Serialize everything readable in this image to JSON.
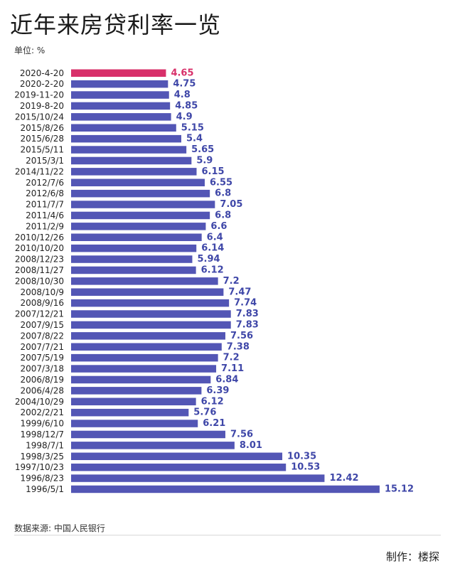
{
  "header": {
    "title": "近年来房贷利率一览",
    "unit": "单位: %"
  },
  "footer": {
    "source": "数据来源: 中国人民银行",
    "credit": "制作：楼探"
  },
  "colors": {
    "bar": "#5356b5",
    "highlight": "#d8306a",
    "label": "#3f47a8"
  },
  "chart_data": {
    "type": "bar",
    "orientation": "horizontal",
    "title": "近年来房贷利率一览",
    "unit": "%",
    "highlight_index": 0,
    "categories": [
      "2020-4-20",
      "2020-2-20",
      "2019-11-20",
      "2019-8-20",
      "2015/10/24",
      "2015/8/26",
      "2015/6/28",
      "2015/5/11",
      "2015/3/1",
      "2014/11/22",
      "2012/7/6",
      "2012/6/8",
      "2011/7/7",
      "2011/4/6",
      "2011/2/9",
      "2010/12/26",
      "2010/10/20",
      "2008/12/23",
      "2008/11/27",
      "2008/10/30",
      "2008/10/9",
      "2008/9/16",
      "2007/12/21",
      "2007/9/15",
      "2007/8/22",
      "2007/7/21",
      "2007/5/19",
      "2007/3/18",
      "2006/8/19",
      "2006/4/28",
      "2004/10/29",
      "2002/2/21",
      "1999/6/10",
      "1998/12/7",
      "1998/7/1",
      "1998/3/25",
      "1997/10/23",
      "1996/8/23",
      "1996/5/1"
    ],
    "labels": [
      "4.65",
      "4.75",
      "4.8",
      "4.85",
      "4.9",
      "5.15",
      "5.4",
      "5.65",
      "5.9",
      "6.15",
      "6.55",
      "6.8",
      "7.05",
      "6.8",
      "6.6",
      "6.4",
      "6.14",
      "5.94",
      "6.12",
      "7.2",
      "7.47",
      "7.74",
      "7.83",
      "7.83",
      "7.56",
      "7.38",
      "7.2",
      "7.11",
      "6.84",
      "6.39",
      "6.12",
      "5.76",
      "6.21",
      "7.56",
      "8.01",
      "10.35",
      "10.53",
      "12.42",
      "15.12"
    ],
    "values": [
      4.65,
      4.75,
      4.8,
      4.85,
      4.9,
      5.15,
      5.4,
      5.65,
      5.9,
      6.15,
      6.55,
      6.8,
      7.05,
      6.8,
      6.6,
      6.4,
      6.14,
      5.94,
      6.12,
      7.2,
      7.47,
      7.74,
      7.83,
      7.83,
      7.56,
      7.38,
      7.2,
      7.11,
      6.84,
      6.39,
      6.12,
      5.76,
      6.21,
      7.56,
      8.01,
      10.35,
      10.53,
      12.42,
      15.12
    ]
  }
}
